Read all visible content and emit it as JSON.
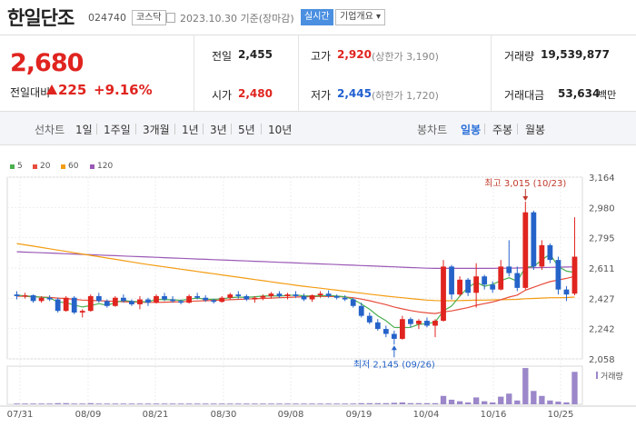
{
  "header": {
    "name": "한일단조",
    "code": "024740",
    "market_badge": "코스닥",
    "date_text": "2023.10.30  기준(장마감)",
    "live_label": "실시간",
    "info_label": "기업개요 ▾"
  },
  "price": {
    "current": "2,680",
    "change_label": "전일대비",
    "change_value": "225",
    "change_pct": "+9.16%"
  },
  "stats": {
    "prev_label": "전일",
    "prev_value": "2,455",
    "open_label": "시가",
    "open_value": "2,480",
    "high_label": "고가",
    "high_value": "2,920",
    "high_limit": "(상한가 3,190)",
    "low_label": "저가",
    "low_value": "2,445",
    "low_limit": "(하한가 1,720)",
    "volume_label": "거래량",
    "volume_value": "19,539,877",
    "amount_label": "거래대금",
    "amount_value": "53,634",
    "amount_unit": "백만"
  },
  "period_bar": {
    "line_label": "선차트",
    "line_items": [
      "1일",
      "1주일",
      "3개월",
      "1년",
      "3년",
      "5년",
      "10년"
    ],
    "candle_label": "봉차트",
    "candle_items": [
      "일봉",
      "주봉",
      "월봉"
    ],
    "candle_active": "일봉"
  },
  "legend": [
    {
      "label": "5",
      "color": "#4caf50"
    },
    {
      "label": "20",
      "color": "#e74c3c"
    },
    {
      "label": "60",
      "color": "#f39c12"
    },
    {
      "label": "120",
      "color": "#9b59b6"
    }
  ],
  "colors": {
    "up": "#e0241f",
    "down": "#2563c9",
    "volume": "#9b87c9"
  },
  "chart_data": {
    "type": "candlestick",
    "y_ticks": [
      "3,164",
      "2,980",
      "2,795",
      "2,611",
      "2,427",
      "2,242",
      "2,058"
    ],
    "ylim": [
      2058,
      3164
    ],
    "x_ticks": [
      "07/31",
      "08/09",
      "08/21",
      "08/30",
      "09/08",
      "09/19",
      "10/04",
      "10/16",
      "10/25"
    ],
    "high_annotation": "최고 3,015 (10/23)",
    "low_annotation": "최저 2,145 (09/26)",
    "volume_label": "거래량",
    "candles": [
      [
        2450,
        2470,
        2420,
        2440
      ],
      [
        2440,
        2460,
        2425,
        2445
      ],
      [
        2445,
        2450,
        2400,
        2410
      ],
      [
        2410,
        2440,
        2400,
        2430
      ],
      [
        2430,
        2445,
        2410,
        2420
      ],
      [
        2420,
        2430,
        2340,
        2350
      ],
      [
        2350,
        2440,
        2345,
        2430
      ],
      [
        2430,
        2440,
        2330,
        2340
      ],
      [
        2340,
        2360,
        2310,
        2350
      ],
      [
        2350,
        2450,
        2345,
        2440
      ],
      [
        2440,
        2460,
        2400,
        2410
      ],
      [
        2410,
        2420,
        2370,
        2380
      ],
      [
        2380,
        2440,
        2375,
        2430
      ],
      [
        2430,
        2450,
        2400,
        2410
      ],
      [
        2410,
        2420,
        2380,
        2390
      ],
      [
        2390,
        2440,
        2360,
        2420
      ],
      [
        2420,
        2430,
        2380,
        2400
      ],
      [
        2400,
        2450,
        2395,
        2440
      ],
      [
        2440,
        2460,
        2410,
        2420
      ],
      [
        2420,
        2440,
        2400,
        2410
      ],
      [
        2410,
        2420,
        2390,
        2400
      ],
      [
        2400,
        2450,
        2395,
        2440
      ],
      [
        2440,
        2460,
        2420,
        2430
      ],
      [
        2430,
        2445,
        2405,
        2415
      ],
      [
        2415,
        2425,
        2395,
        2405
      ],
      [
        2405,
        2440,
        2400,
        2430
      ],
      [
        2430,
        2460,
        2420,
        2450
      ],
      [
        2450,
        2470,
        2425,
        2440
      ],
      [
        2440,
        2450,
        2410,
        2420
      ],
      [
        2420,
        2440,
        2400,
        2430
      ],
      [
        2430,
        2450,
        2415,
        2440
      ],
      [
        2440,
        2465,
        2425,
        2455
      ],
      [
        2455,
        2470,
        2430,
        2440
      ],
      [
        2440,
        2460,
        2420,
        2450
      ],
      [
        2450,
        2470,
        2430,
        2440
      ],
      [
        2440,
        2455,
        2410,
        2420
      ],
      [
        2420,
        2450,
        2405,
        2445
      ],
      [
        2445,
        2470,
        2430,
        2455
      ],
      [
        2455,
        2475,
        2430,
        2440
      ],
      [
        2440,
        2450,
        2420,
        2430
      ],
      [
        2430,
        2445,
        2410,
        2420
      ],
      [
        2420,
        2430,
        2370,
        2380
      ],
      [
        2380,
        2400,
        2310,
        2320
      ],
      [
        2320,
        2340,
        2270,
        2280
      ],
      [
        2280,
        2300,
        2230,
        2240
      ],
      [
        2240,
        2260,
        2190,
        2210
      ],
      [
        2210,
        2230,
        2145,
        2180
      ],
      [
        2180,
        2320,
        2175,
        2300
      ],
      [
        2300,
        2310,
        2250,
        2270
      ],
      [
        2270,
        2300,
        2240,
        2290
      ],
      [
        2290,
        2310,
        2250,
        2260
      ],
      [
        2260,
        2300,
        2190,
        2290
      ],
      [
        2290,
        2660,
        2285,
        2620
      ],
      [
        2620,
        2630,
        2420,
        2450
      ],
      [
        2450,
        2560,
        2440,
        2540
      ],
      [
        2540,
        2550,
        2440,
        2460
      ],
      [
        2460,
        2640,
        2370,
        2560
      ],
      [
        2560,
        2570,
        2480,
        2510
      ],
      [
        2510,
        2530,
        2460,
        2480
      ],
      [
        2480,
        2660,
        2475,
        2620
      ],
      [
        2620,
        2780,
        2560,
        2580
      ],
      [
        2580,
        2620,
        2470,
        2490
      ],
      [
        2490,
        3015,
        2480,
        2950
      ],
      [
        2950,
        2960,
        2600,
        2620
      ],
      [
        2620,
        2780,
        2600,
        2750
      ],
      [
        2750,
        2760,
        2640,
        2660
      ],
      [
        2660,
        2680,
        2450,
        2480
      ],
      [
        2480,
        2500,
        2410,
        2450
      ],
      [
        2455,
        2920,
        2445,
        2680
      ]
    ],
    "volumes": [
      0.02,
      0.02,
      0.02,
      0.02,
      0.02,
      0.03,
      0.03,
      0.02,
      0.02,
      0.03,
      0.02,
      0.02,
      0.02,
      0.02,
      0.02,
      0.02,
      0.02,
      0.02,
      0.02,
      0.02,
      0.02,
      0.02,
      0.02,
      0.02,
      0.02,
      0.02,
      0.02,
      0.02,
      0.02,
      0.02,
      0.02,
      0.02,
      0.02,
      0.02,
      0.02,
      0.02,
      0.02,
      0.02,
      0.02,
      0.02,
      0.02,
      0.02,
      0.03,
      0.03,
      0.03,
      0.03,
      0.04,
      0.05,
      0.03,
      0.03,
      0.03,
      0.03,
      0.22,
      0.12,
      0.08,
      0.05,
      0.18,
      0.08,
      0.05,
      0.2,
      0.28,
      0.1,
      0.95,
      0.35,
      0.22,
      0.1,
      0.07,
      0.05,
      0.85
    ],
    "ma5": [
      2445,
      2442,
      2438,
      2433,
      2429,
      2405,
      2400,
      2386,
      2374,
      2382,
      2394,
      2384,
      2400,
      2414,
      2408,
      2406,
      2406,
      2420,
      2418,
      2418,
      2414,
      2422,
      2428,
      2422,
      2420,
      2424,
      2430,
      2434,
      2432,
      2436,
      2440,
      2442,
      2440,
      2444,
      2446,
      2442,
      2440,
      2442,
      2444,
      2440,
      2436,
      2420,
      2392,
      2360,
      2320,
      2290,
      2250,
      2248,
      2250,
      2268,
      2272,
      2282,
      2350,
      2380,
      2440,
      2492,
      2524,
      2500,
      2512,
      2534,
      2552,
      2530,
      2616,
      2620,
      2660,
      2696,
      2620,
      2592,
      2584
    ],
    "ma20": [
      2440,
      2438,
      2436,
      2434,
      2432,
      2428,
      2425,
      2420,
      2416,
      2414,
      2412,
      2410,
      2408,
      2406,
      2404,
      2403,
      2402,
      2402,
      2403,
      2404,
      2406,
      2408,
      2410,
      2412,
      2414,
      2416,
      2418,
      2420,
      2422,
      2424,
      2426,
      2428,
      2430,
      2432,
      2434,
      2436,
      2437,
      2438,
      2438,
      2437,
      2435,
      2430,
      2422,
      2412,
      2400,
      2388,
      2374,
      2362,
      2352,
      2344,
      2338,
      2334,
      2344,
      2350,
      2360,
      2370,
      2384,
      2394,
      2404,
      2418,
      2434,
      2446,
      2476,
      2494,
      2512,
      2528,
      2538,
      2548,
      2560
    ],
    "ma60": [
      2760,
      2752,
      2744,
      2736,
      2728,
      2720,
      2712,
      2704,
      2696,
      2688,
      2680,
      2672,
      2664,
      2656,
      2648,
      2640,
      2632,
      2625,
      2618,
      2611,
      2604,
      2597,
      2590,
      2583,
      2576,
      2569,
      2562,
      2555,
      2548,
      2541,
      2534,
      2527,
      2520,
      2513,
      2506,
      2500,
      2494,
      2488,
      2482,
      2476,
      2470,
      2464,
      2458,
      2452,
      2446,
      2440,
      2435,
      2430,
      2425,
      2420,
      2416,
      2413,
      2412,
      2412,
      2413,
      2414,
      2415,
      2416,
      2417,
      2418,
      2419,
      2420,
      2424,
      2426,
      2428,
      2430,
      2430,
      2431,
      2434
    ],
    "ma120": [
      2710,
      2708,
      2706,
      2704,
      2702,
      2700,
      2698,
      2696,
      2694,
      2692,
      2690,
      2688,
      2686,
      2684,
      2682,
      2680,
      2678,
      2676,
      2674,
      2672,
      2670,
      2668,
      2666,
      2664,
      2662,
      2660,
      2658,
      2656,
      2654,
      2652,
      2650,
      2648,
      2646,
      2644,
      2642,
      2640,
      2638,
      2636,
      2634,
      2632,
      2630,
      2628,
      2626,
      2624,
      2622,
      2620,
      2618,
      2616,
      2614,
      2612,
      2610,
      2609,
      2609,
      2609,
      2609,
      2609,
      2609,
      2609,
      2609,
      2610,
      2610,
      2611,
      2612,
      2613,
      2614,
      2615,
      2616,
      2617,
      2618
    ]
  }
}
